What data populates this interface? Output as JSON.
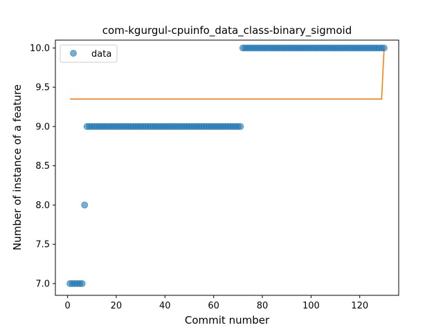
{
  "chart_data": {
    "type": "scatter",
    "title": "com-kgurgul-cpuinfo_data_class-binary_sigmoid",
    "xlabel": "Commit number",
    "ylabel": "Number of instance of a feature",
    "xlim": [
      -5,
      136
    ],
    "ylim": [
      6.85,
      10.1
    ],
    "xticks": [
      0,
      20,
      40,
      60,
      80,
      100,
      120
    ],
    "xtick_labels": [
      "0",
      "20",
      "40",
      "60",
      "80",
      "100",
      "120"
    ],
    "yticks": [
      7.0,
      7.5,
      8.0,
      8.5,
      9.0,
      9.5,
      10.0
    ],
    "ytick_labels": [
      "7.0",
      "7.5",
      "8.0",
      "8.5",
      "9.0",
      "9.5",
      "10.0"
    ],
    "grid": false,
    "legend_position": "top-left",
    "series": [
      {
        "name": "data",
        "kind": "scatter",
        "color": "#1f77b4",
        "segments": [
          {
            "x_start": 1,
            "x_end": 6,
            "y": 7.0
          },
          {
            "x_start": 7,
            "x_end": 7,
            "y": 8.0
          },
          {
            "x_start": 8,
            "x_end": 71,
            "y": 9.0
          },
          {
            "x_start": 72,
            "x_end": 130,
            "y": 10.0
          }
        ]
      },
      {
        "kind": "line",
        "color": "#ff7f0e",
        "x": [
          1,
          129,
          130
        ],
        "y": [
          9.35,
          9.35,
          10.0
        ]
      }
    ]
  }
}
